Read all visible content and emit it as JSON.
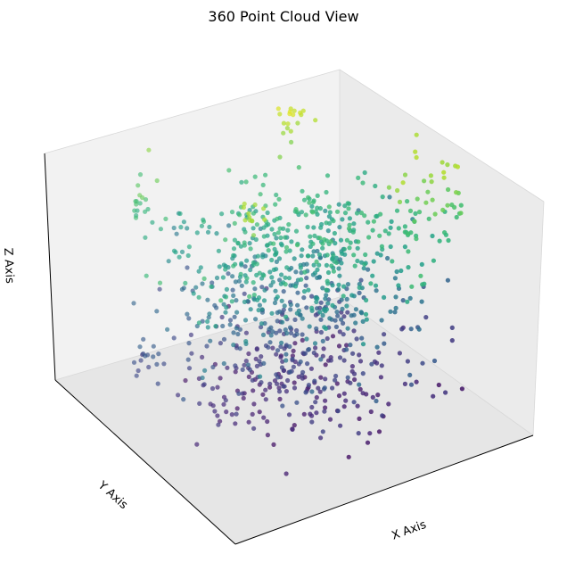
{
  "chart_data": {
    "type": "scatter",
    "projection": "3d",
    "title": "360 Point Cloud View",
    "xlabel": "X Axis",
    "ylabel": "Y Axis",
    "zlabel": "Z Axis",
    "grid": false,
    "tick_labels": false,
    "colormap": "viridis",
    "color_by": "z",
    "colormap_stops": [
      "#440154",
      "#482878",
      "#3e4989",
      "#31688e",
      "#26828e",
      "#1f9e89",
      "#35b779",
      "#6ece58",
      "#b5de2b",
      "#fde725"
    ],
    "clusters": [
      {
        "cx": 0.5,
        "cy": 0.5,
        "z": [
          0.05,
          0.2
        ],
        "sx": 0.3,
        "sy": 0.3,
        "n": 230
      },
      {
        "cx": 0.1,
        "cy": 0.7,
        "z": [
          0.2,
          0.32
        ],
        "sx": 0.07,
        "sy": 0.12,
        "n": 30
      },
      {
        "cx": 0.5,
        "cy": 0.5,
        "z": [
          0.2,
          0.5
        ],
        "sx": 0.3,
        "sy": 0.3,
        "n": 300
      },
      {
        "cx": 0.5,
        "cy": 0.5,
        "z": [
          0.5,
          0.7
        ],
        "sx": 0.32,
        "sy": 0.3,
        "n": 360
      },
      {
        "cx": 0.15,
        "cy": 0.85,
        "z": [
          0.6,
          0.9
        ],
        "sx": 0.08,
        "sy": 0.08,
        "n": 60
      },
      {
        "cx": 0.85,
        "cy": 0.3,
        "z": [
          0.62,
          0.9
        ],
        "sx": 0.1,
        "sy": 0.1,
        "n": 50
      },
      {
        "cx": 0.62,
        "cy": 0.72,
        "z": [
          0.8,
          1.0
        ],
        "sx": 0.05,
        "sy": 0.05,
        "n": 30
      },
      {
        "cx": 0.3,
        "cy": 0.4,
        "z": [
          0.8,
          0.88
        ],
        "sx": 0.04,
        "sy": 0.04,
        "n": 12
      }
    ]
  }
}
